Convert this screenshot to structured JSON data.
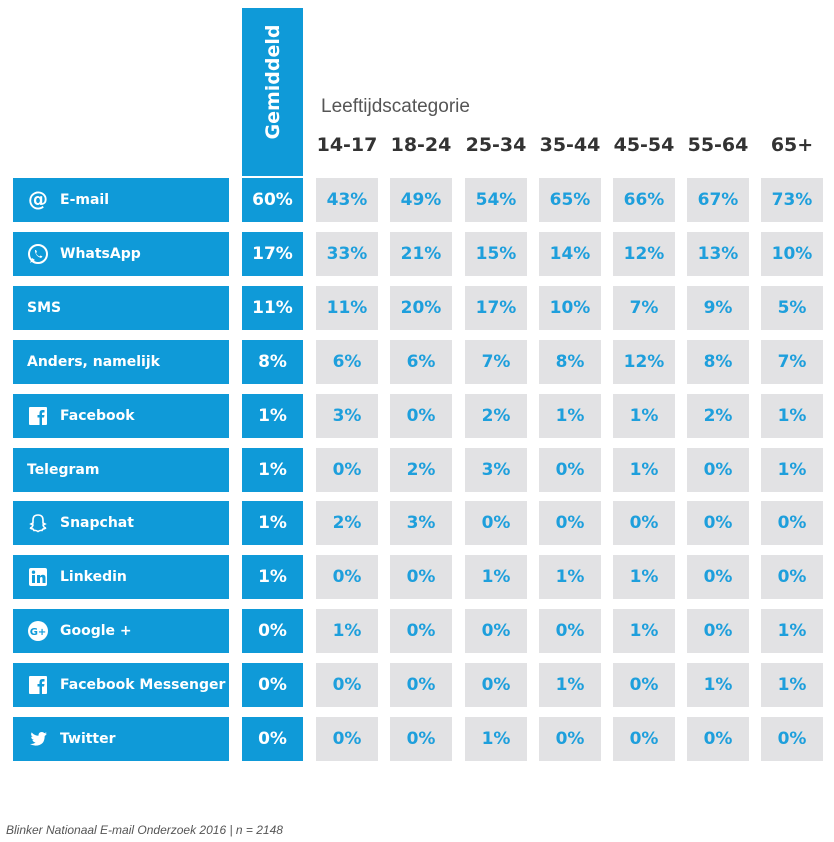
{
  "chart_data": {
    "type": "table",
    "average_label": "Gemiddeld",
    "age_title": "Leeftijdscategorie",
    "age_groups": [
      "14-17",
      "18-24",
      "25-34",
      "35-44",
      "45-54",
      "55-64",
      "65+"
    ],
    "rows": [
      {
        "label": "E-mail",
        "icon": "at-icon",
        "average": "60%",
        "values": [
          "43%",
          "49%",
          "54%",
          "65%",
          "66%",
          "67%",
          "73%"
        ]
      },
      {
        "label": "WhatsApp",
        "icon": "whatsapp-icon",
        "average": "17%",
        "values": [
          "33%",
          "21%",
          "15%",
          "14%",
          "12%",
          "13%",
          "10%"
        ]
      },
      {
        "label": "SMS",
        "icon": "",
        "average": "11%",
        "values": [
          "11%",
          "20%",
          "17%",
          "10%",
          "7%",
          "9%",
          "5%"
        ]
      },
      {
        "label": "Anders, namelijk",
        "icon": "",
        "average": "8%",
        "values": [
          "6%",
          "6%",
          "7%",
          "8%",
          "12%",
          "8%",
          "7%"
        ]
      },
      {
        "label": "Facebook",
        "icon": "facebook-icon",
        "average": "1%",
        "values": [
          "3%",
          "0%",
          "2%",
          "1%",
          "1%",
          "2%",
          "1%"
        ]
      },
      {
        "label": "Telegram",
        "icon": "",
        "average": "1%",
        "values": [
          "0%",
          "2%",
          "3%",
          "0%",
          "1%",
          "0%",
          "1%"
        ]
      },
      {
        "label": "Snapchat",
        "icon": "snapchat-icon",
        "average": "1%",
        "values": [
          "2%",
          "3%",
          "0%",
          "0%",
          "0%",
          "0%",
          "0%"
        ]
      },
      {
        "label": "Linkedin",
        "icon": "linkedin-icon",
        "average": "1%",
        "values": [
          "0%",
          "0%",
          "1%",
          "1%",
          "1%",
          "0%",
          "0%"
        ]
      },
      {
        "label": "Google +",
        "icon": "google-plus-icon",
        "average": "0%",
        "values": [
          "1%",
          "0%",
          "0%",
          "0%",
          "1%",
          "0%",
          "1%"
        ]
      },
      {
        "label": "Facebook Messenger",
        "icon": "facebook-icon",
        "average": "0%",
        "values": [
          "0%",
          "0%",
          "0%",
          "1%",
          "0%",
          "1%",
          "1%"
        ]
      },
      {
        "label": "Twitter",
        "icon": "twitter-icon",
        "average": "0%",
        "values": [
          "0%",
          "0%",
          "1%",
          "0%",
          "0%",
          "0%",
          "0%"
        ]
      }
    ]
  },
  "colors": {
    "accent": "#0f9ad8",
    "cell_bg": "#e2e2e4",
    "value_text": "#1e9fdc"
  },
  "source": "Blinker Nationaal E-mail Onderzoek 2016 | n = 2148"
}
